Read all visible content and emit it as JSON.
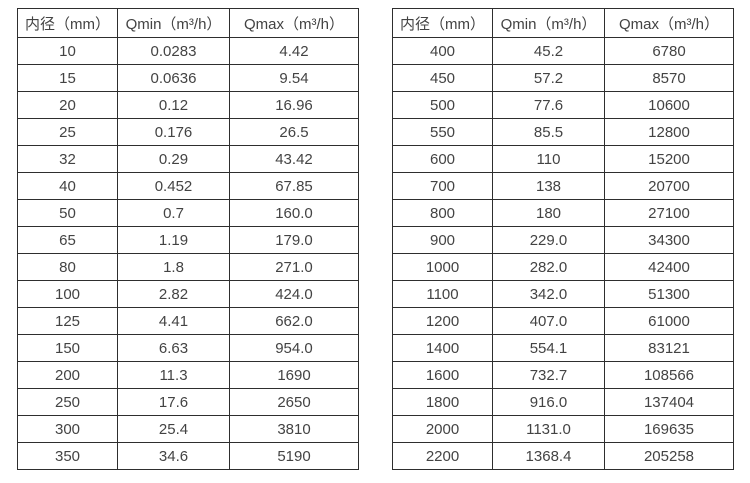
{
  "colors": {
    "background": "#ffffff",
    "text": "#434343",
    "border": "#2e2e2e"
  },
  "chart_data": [
    {
      "type": "table",
      "title": "",
      "columns": [
        "内径（mm）",
        "Qmin（m³/h）",
        "Qmax（m³/h）"
      ],
      "rows": [
        [
          "10",
          "0.0283",
          "4.42"
        ],
        [
          "15",
          "0.0636",
          "9.54"
        ],
        [
          "20",
          "0.12",
          "16.96"
        ],
        [
          "25",
          "0.176",
          "26.5"
        ],
        [
          "32",
          "0.29",
          "43.42"
        ],
        [
          "40",
          "0.452",
          "67.85"
        ],
        [
          "50",
          "0.7",
          "160.0"
        ],
        [
          "65",
          "1.19",
          "179.0"
        ],
        [
          "80",
          "1.8",
          "271.0"
        ],
        [
          "100",
          "2.82",
          "424.0"
        ],
        [
          "125",
          "4.41",
          "662.0"
        ],
        [
          "150",
          "6.63",
          "954.0"
        ],
        [
          "200",
          "11.3",
          "1690"
        ],
        [
          "250",
          "17.6",
          "2650"
        ],
        [
          "300",
          "25.4",
          "3810"
        ],
        [
          "350",
          "34.6",
          "5190"
        ]
      ]
    },
    {
      "type": "table",
      "title": "",
      "columns": [
        "内径（mm）",
        "Qmin（m³/h）",
        "Qmax（m³/h）"
      ],
      "rows": [
        [
          "400",
          "45.2",
          "6780"
        ],
        [
          "450",
          "57.2",
          "8570"
        ],
        [
          "500",
          "77.6",
          "10600"
        ],
        [
          "550",
          "85.5",
          "12800"
        ],
        [
          "600",
          "110",
          "15200"
        ],
        [
          "700",
          "138",
          "20700"
        ],
        [
          "800",
          "180",
          "27100"
        ],
        [
          "900",
          "229.0",
          "34300"
        ],
        [
          "1000",
          "282.0",
          "42400"
        ],
        [
          "1100",
          "342.0",
          "51300"
        ],
        [
          "1200",
          "407.0",
          "61000"
        ],
        [
          "1400",
          "554.1",
          "83121"
        ],
        [
          "1600",
          "732.7",
          "108566"
        ],
        [
          "1800",
          "916.0",
          "137404"
        ],
        [
          "2000",
          "1131.0",
          "169635"
        ],
        [
          "2200",
          "1368.4",
          "205258"
        ]
      ]
    }
  ]
}
